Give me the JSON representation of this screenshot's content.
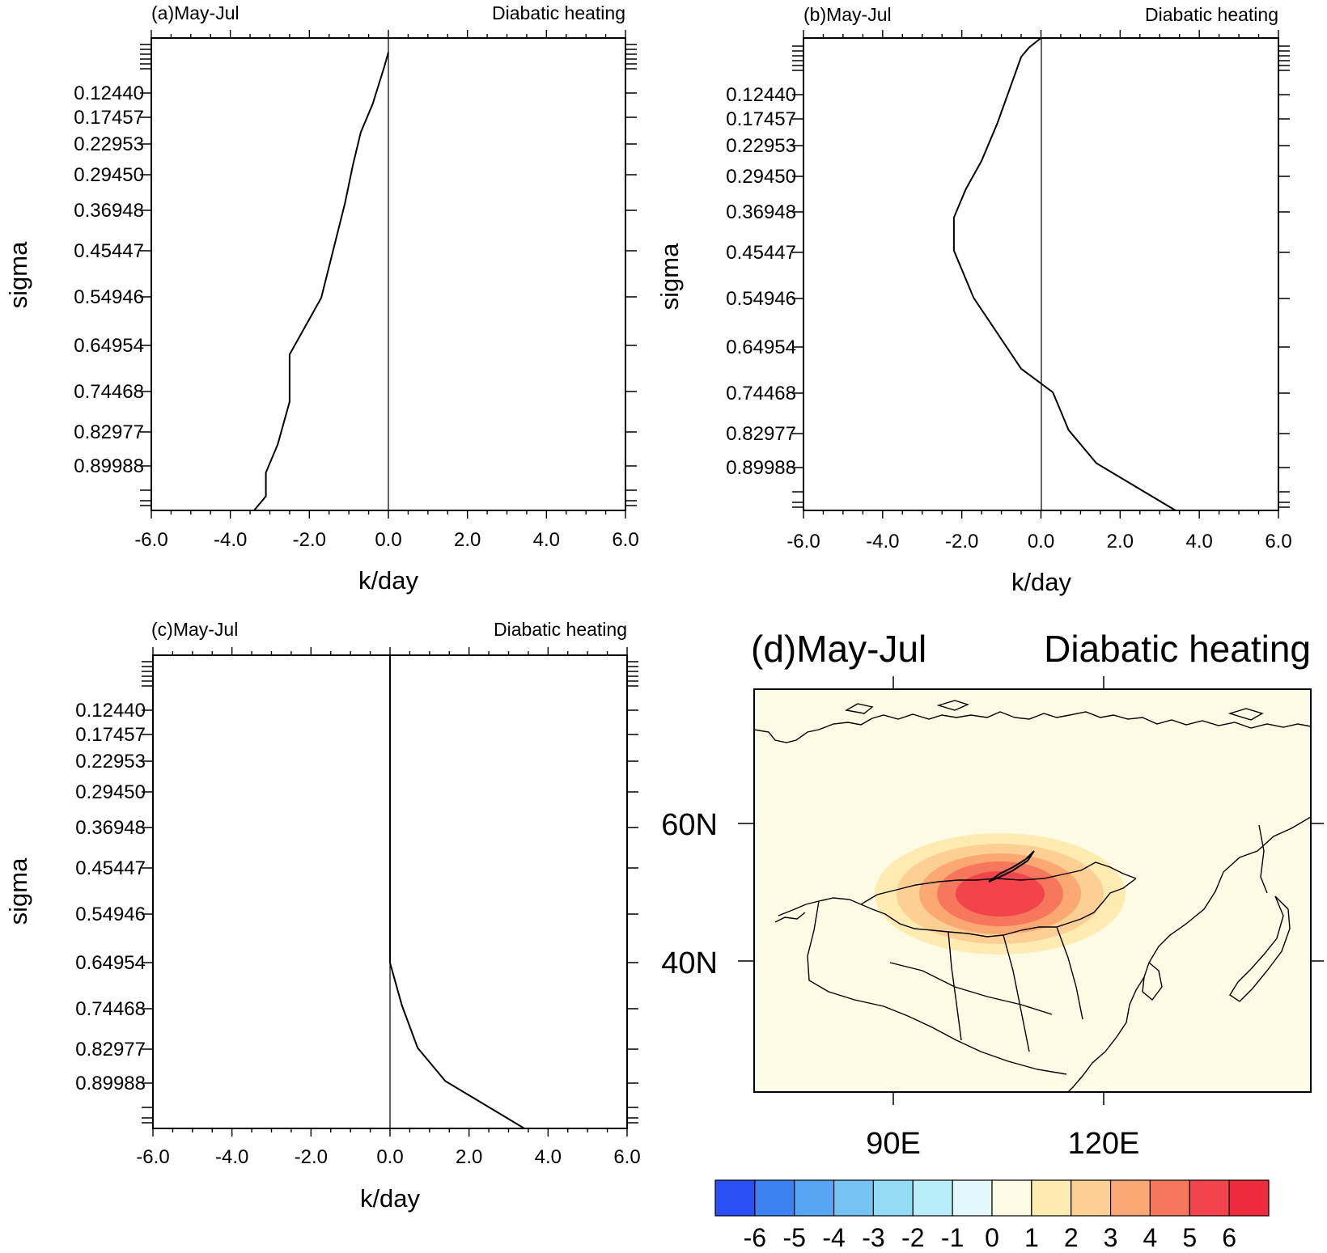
{
  "chart_data": [
    {
      "type": "line",
      "panel_label": "(a)May-Jul",
      "title_right": "Diabatic heating",
      "xlabel": "k/day",
      "ylabel": "sigma",
      "xlim": [
        -6,
        6
      ],
      "x_ticks": [
        "-6.0",
        "-4.0",
        "-2.0",
        "0.0",
        "2.0",
        "4.0",
        "6.0"
      ],
      "y_tick_labels": [
        "0.12440",
        "0.17457",
        "0.22953",
        "0.29450",
        "0.36948",
        "0.45447",
        "0.54946",
        "0.64954",
        "0.74468",
        "0.82977",
        "0.89988"
      ],
      "series": [
        {
          "x": [
            0.0,
            -0.1,
            -0.4,
            -0.7,
            -0.9,
            -1.1,
            -1.7,
            -2.5,
            -2.5,
            -2.8,
            -3.1,
            -3.1,
            -3.4
          ],
          "y": [
            0.03,
            0.06,
            0.14,
            0.2,
            0.27,
            0.35,
            0.55,
            0.67,
            0.77,
            0.86,
            0.92,
            0.97,
            1.0
          ]
        }
      ]
    },
    {
      "type": "line",
      "panel_label": "(b)May-Jul",
      "title_right": "Diabatic heating",
      "xlabel": "k/day",
      "ylabel": "sigma",
      "xlim": [
        -6,
        6
      ],
      "x_ticks": [
        "-6.0",
        "-4.0",
        "-2.0",
        "0.0",
        "2.0",
        "4.0",
        "6.0"
      ],
      "y_tick_labels": [
        "0.12440",
        "0.17457",
        "0.22953",
        "0.29450",
        "0.36948",
        "0.45447",
        "0.54946",
        "0.64954",
        "0.74468",
        "0.82977",
        "0.89988"
      ],
      "series": [
        {
          "x": [
            0.0,
            -0.3,
            -0.5,
            -0.8,
            -1.1,
            -1.5,
            -1.9,
            -2.2,
            -2.2,
            -1.7,
            -0.5,
            0.3,
            0.7,
            1.4,
            2.8,
            3.4
          ],
          "y": [
            0.0,
            0.02,
            0.04,
            0.11,
            0.18,
            0.26,
            0.32,
            0.38,
            0.45,
            0.55,
            0.7,
            0.75,
            0.83,
            0.9,
            0.97,
            1.0
          ]
        }
      ]
    },
    {
      "type": "line",
      "panel_label": "(c)May-Jul",
      "title_right": "Diabatic heating",
      "xlabel": "k/day",
      "ylabel": "sigma",
      "xlim": [
        -6,
        6
      ],
      "x_ticks": [
        "-6.0",
        "-4.0",
        "-2.0",
        "0.0",
        "2.0",
        "4.0",
        "6.0"
      ],
      "y_tick_labels": [
        "0.12440",
        "0.17457",
        "0.22953",
        "0.29450",
        "0.36948",
        "0.45447",
        "0.54946",
        "0.64954",
        "0.74468",
        "0.82977",
        "0.89988"
      ],
      "series": [
        {
          "x": [
            0.0,
            0.0,
            0.3,
            0.7,
            1.4,
            2.8,
            3.4
          ],
          "y": [
            0.0,
            0.65,
            0.74,
            0.83,
            0.9,
            0.97,
            1.0
          ]
        }
      ]
    },
    {
      "type": "heatmap",
      "panel_label": "(d)May-Jul",
      "title_right": "Diabatic heating",
      "lon_range": [
        70,
        150
      ],
      "lat_range": [
        25,
        79
      ],
      "lon_ticks": [
        "90E",
        "120E"
      ],
      "lat_ticks": [
        "60N",
        "40N"
      ],
      "anomaly_center": {
        "lon": 105,
        "lat": 50
      },
      "contour_levels": [
        1,
        2,
        3,
        4,
        5
      ],
      "colorbar": {
        "labels": [
          "-6",
          "-5",
          "-4",
          "-3",
          "-2",
          "-1",
          "0",
          "1",
          "2",
          "3",
          "4",
          "5",
          "6"
        ],
        "colors": [
          "#2a50f5",
          "#3d82f2",
          "#58a5f3",
          "#74c3f3",
          "#93dcf6",
          "#b8eef9",
          "#e3f8fb",
          "#fdfbe3",
          "#fdebb2",
          "#fcd094",
          "#fba875",
          "#f7775c",
          "#f2444a",
          "#ee2a3d"
        ]
      },
      "land_color": "#fdfbe3"
    }
  ]
}
